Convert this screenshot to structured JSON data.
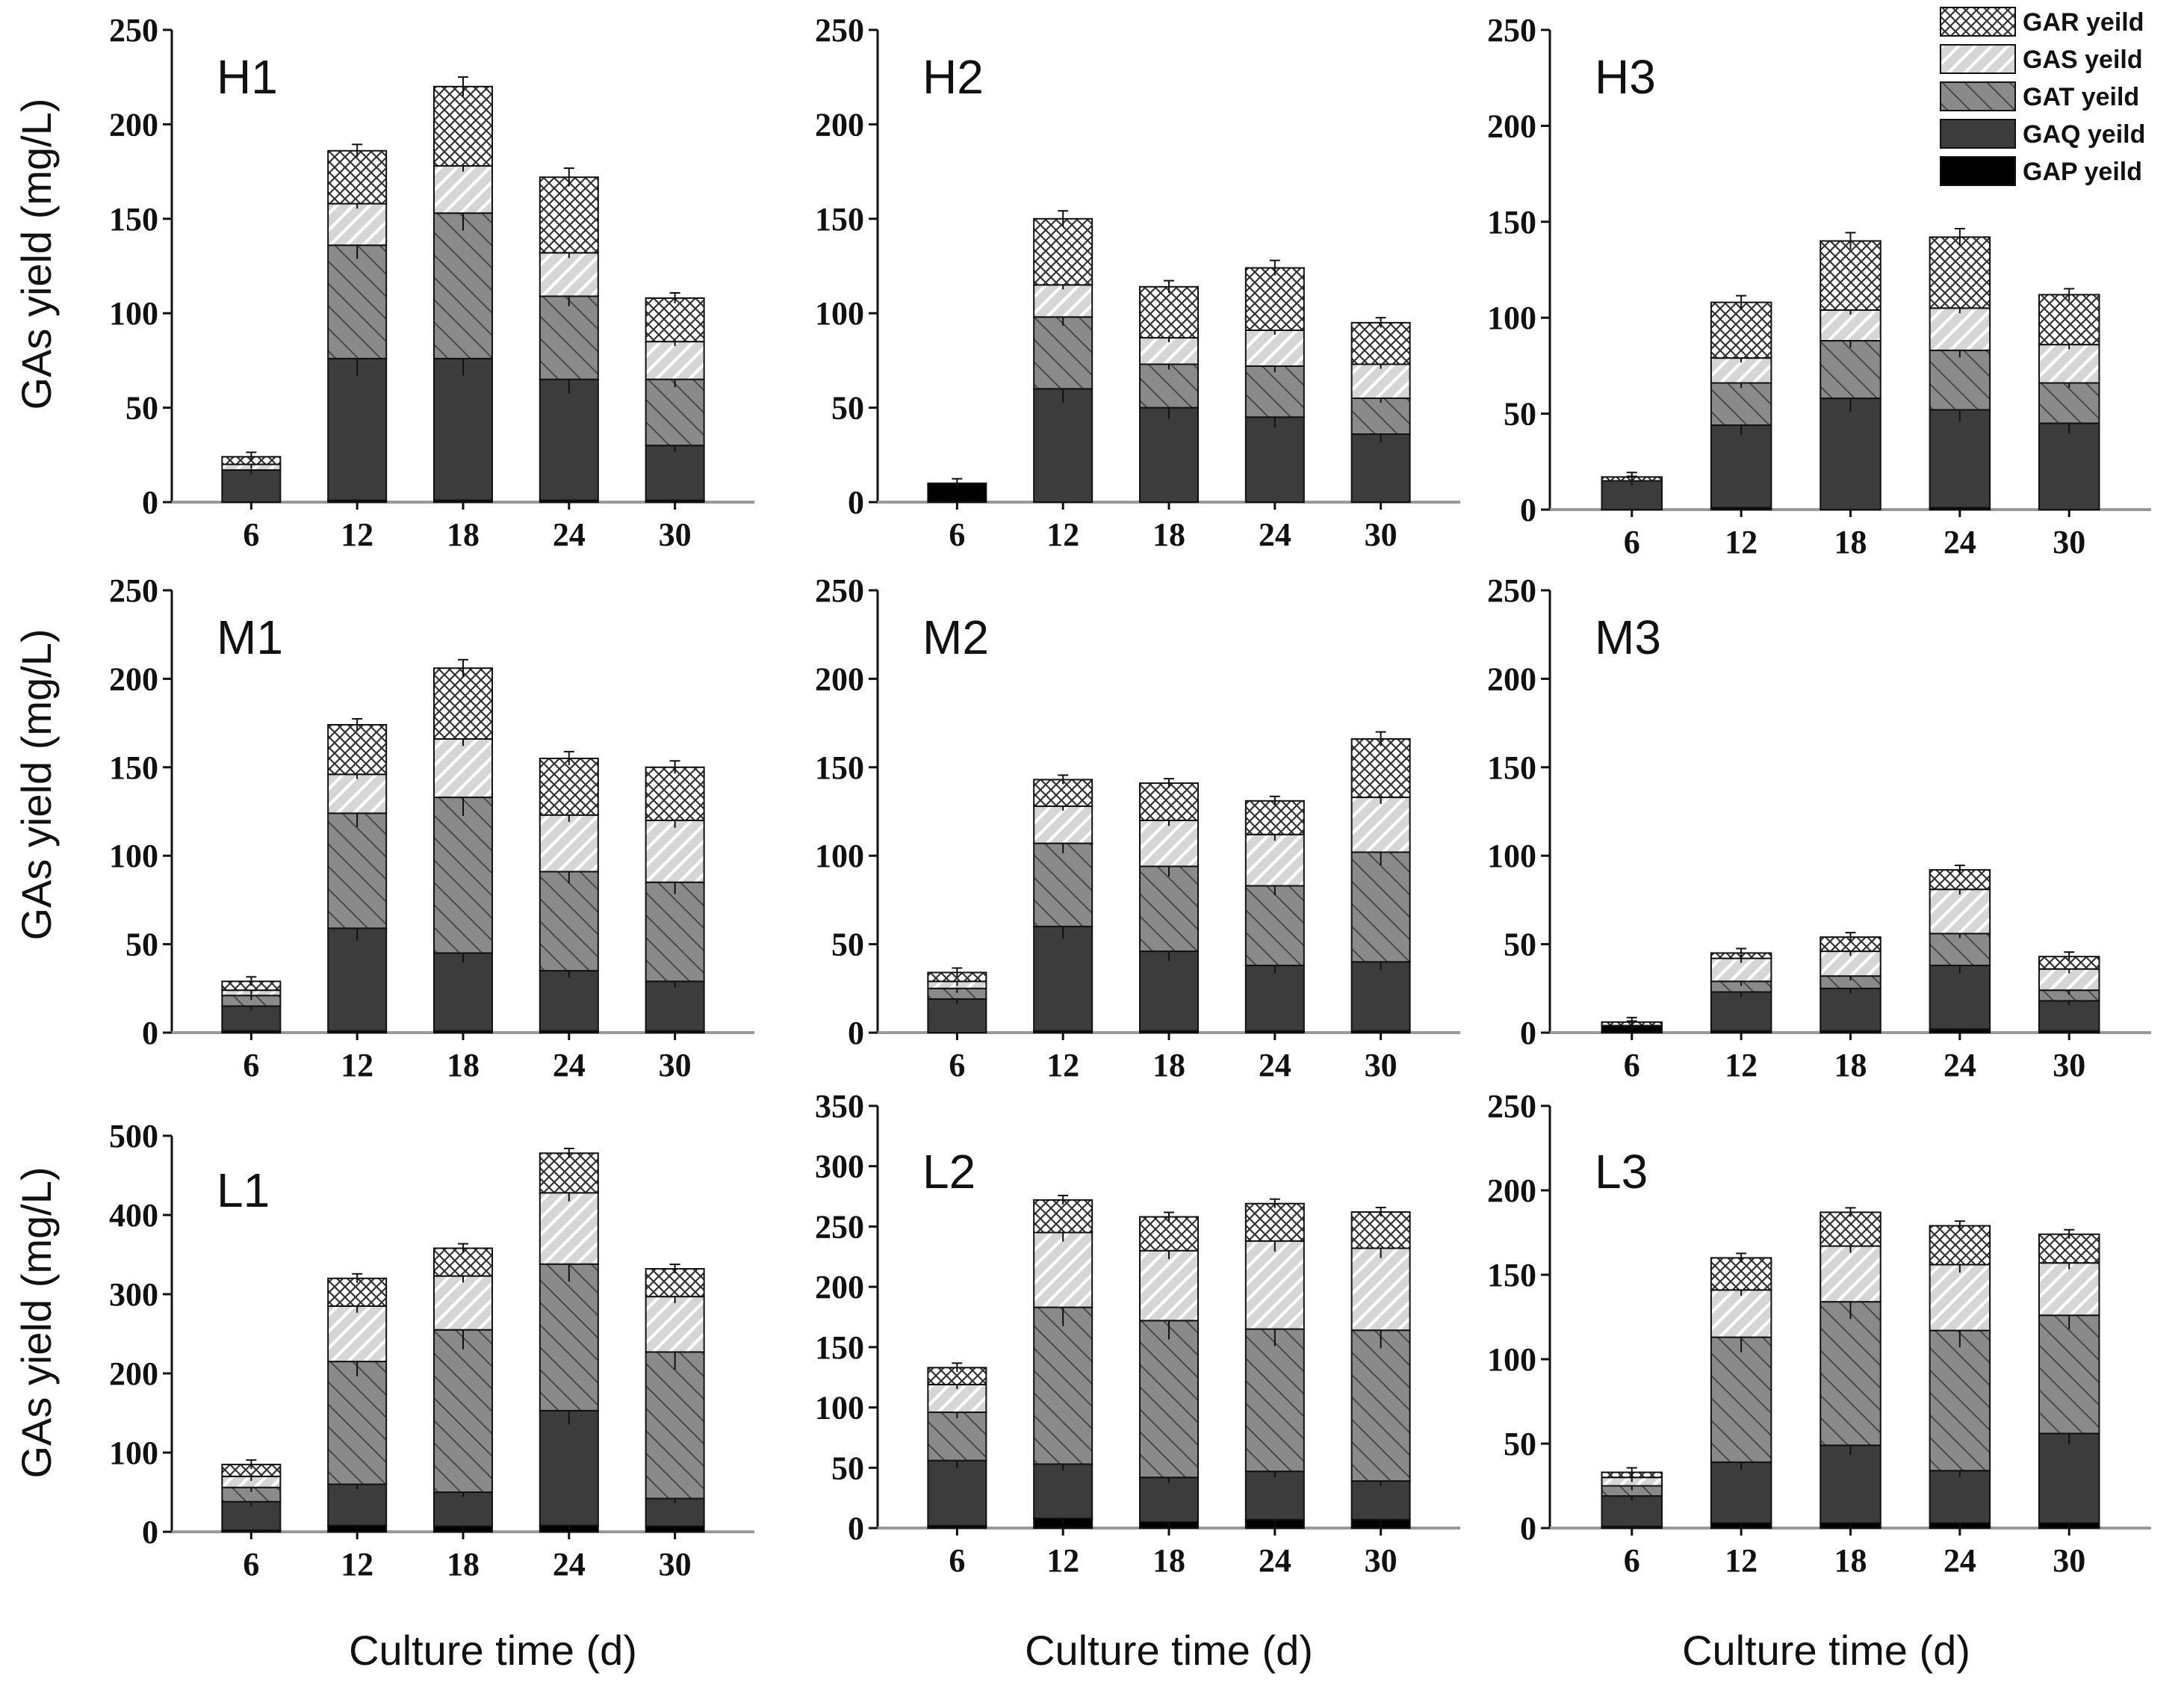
{
  "chart_data": {
    "type": "stacked-bar",
    "ylabel": "GAs yield (mg/L)",
    "xlabel": "Culture time (d)",
    "categories": [
      "6",
      "12",
      "18",
      "24",
      "30"
    ],
    "series": [
      {
        "key": "gap",
        "name": "GAP yeild",
        "color": "#000000",
        "pattern": "solid"
      },
      {
        "key": "gaq",
        "name": "GAQ yeild",
        "color": "#3c3c3c",
        "pattern": "solid"
      },
      {
        "key": "gat",
        "name": "GAT yeild",
        "color": "#8c8c8c",
        "pattern": "hatch-dense"
      },
      {
        "key": "gas",
        "name": "GAS yeild",
        "color": "#d2d2d2",
        "pattern": "hatch-light"
      },
      {
        "key": "gar",
        "name": "GAR yeild",
        "color": "#ffffff",
        "pattern": "crosshatch"
      }
    ],
    "legend_location": "top-right",
    "panels": [
      {
        "id": "H1",
        "title": "H1",
        "ylim": [
          0,
          250
        ],
        "ticks": [
          0,
          50,
          100,
          150,
          200,
          250
        ],
        "gap": [
          0,
          1,
          1,
          1,
          1
        ],
        "gaq": [
          17,
          75,
          75,
          64,
          29
        ],
        "gat": [
          0,
          60,
          77,
          44,
          35
        ],
        "gas": [
          3,
          22,
          25,
          23,
          20
        ],
        "gar": [
          4,
          28,
          42,
          40,
          23
        ]
      },
      {
        "id": "H2",
        "title": "H2",
        "ylim": [
          0,
          250
        ],
        "ticks": [
          0,
          50,
          100,
          150,
          200,
          250
        ],
        "gap": [
          10,
          0,
          0,
          0,
          0
        ],
        "gaq": [
          0,
          60,
          50,
          45,
          36
        ],
        "gat": [
          0,
          38,
          23,
          27,
          19
        ],
        "gas": [
          0,
          17,
          14,
          19,
          18
        ],
        "gar": [
          0,
          35,
          27,
          33,
          22
        ]
      },
      {
        "id": "H3",
        "title": "H3",
        "ylim": [
          0,
          250
        ],
        "ticks": [
          0,
          50,
          100,
          150,
          200,
          250
        ],
        "gap": [
          0,
          1,
          0,
          1,
          0
        ],
        "gaq": [
          15,
          43,
          58,
          51,
          45
        ],
        "gat": [
          0,
          22,
          30,
          31,
          21
        ],
        "gas": [
          0,
          13,
          16,
          22,
          20
        ],
        "gar": [
          2,
          29,
          36,
          37,
          26
        ]
      },
      {
        "id": "M1",
        "title": "M1",
        "ylim": [
          0,
          250
        ],
        "ticks": [
          0,
          50,
          100,
          150,
          200,
          250
        ],
        "gap": [
          1,
          1,
          1,
          1,
          1
        ],
        "gaq": [
          14,
          58,
          44,
          34,
          28
        ],
        "gat": [
          6,
          65,
          88,
          56,
          56
        ],
        "gas": [
          3,
          22,
          33,
          32,
          35
        ],
        "gar": [
          5,
          28,
          40,
          32,
          30
        ]
      },
      {
        "id": "M2",
        "title": "M2",
        "ylim": [
          0,
          250
        ],
        "ticks": [
          0,
          50,
          100,
          150,
          200,
          250
        ],
        "gap": [
          0,
          1,
          1,
          1,
          1
        ],
        "gaq": [
          19,
          59,
          45,
          37,
          39
        ],
        "gat": [
          6,
          47,
          48,
          45,
          62
        ],
        "gas": [
          4,
          21,
          26,
          29,
          31
        ],
        "gar": [
          5,
          15,
          21,
          19,
          33
        ]
      },
      {
        "id": "M3",
        "title": "M3",
        "ylim": [
          0,
          250
        ],
        "ticks": [
          0,
          50,
          100,
          150,
          200,
          250
        ],
        "gap": [
          4,
          1,
          1,
          2,
          1
        ],
        "gaq": [
          0,
          22,
          24,
          36,
          17
        ],
        "gat": [
          0,
          6,
          7,
          18,
          6
        ],
        "gas": [
          0,
          13,
          14,
          25,
          12
        ],
        "gar": [
          2,
          3,
          8,
          11,
          7
        ]
      },
      {
        "id": "L1",
        "title": "L1",
        "ylim": [
          0,
          500
        ],
        "ticks": [
          0,
          100,
          200,
          300,
          400,
          500
        ],
        "gap": [
          2,
          8,
          7,
          8,
          7
        ],
        "gaq": [
          36,
          52,
          43,
          145,
          35
        ],
        "gat": [
          18,
          155,
          205,
          185,
          185
        ],
        "gas": [
          14,
          70,
          68,
          90,
          70
        ],
        "gar": [
          15,
          35,
          35,
          50,
          35
        ]
      },
      {
        "id": "L2",
        "title": "L2",
        "ylim": [
          0,
          350
        ],
        "ticks": [
          0,
          50,
          100,
          150,
          200,
          250,
          300,
          350
        ],
        "gap": [
          2,
          8,
          5,
          7,
          7
        ],
        "gaq": [
          54,
          45,
          37,
          40,
          32
        ],
        "gat": [
          40,
          130,
          130,
          118,
          125
        ],
        "gas": [
          23,
          62,
          58,
          73,
          68
        ],
        "gar": [
          14,
          27,
          28,
          31,
          30
        ]
      },
      {
        "id": "L3",
        "title": "L3",
        "ylim": [
          0,
          250
        ],
        "ticks": [
          0,
          50,
          100,
          150,
          200,
          250
        ],
        "gap": [
          1,
          3,
          3,
          3,
          3
        ],
        "gaq": [
          18,
          36,
          46,
          31,
          53
        ],
        "gat": [
          6,
          74,
          85,
          83,
          70
        ],
        "gas": [
          5,
          28,
          33,
          39,
          31
        ],
        "gar": [
          3,
          19,
          20,
          23,
          17
        ]
      }
    ]
  }
}
